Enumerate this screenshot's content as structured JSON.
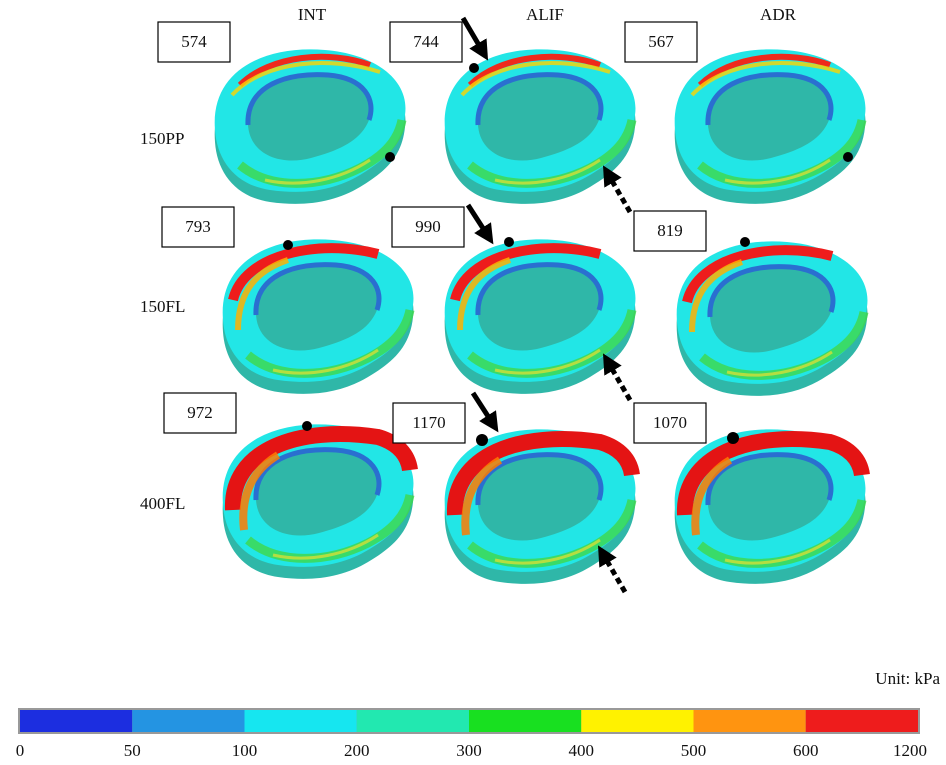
{
  "columns": [
    "INT",
    "ALIF",
    "ADR"
  ],
  "rows": [
    "150PP",
    "150FL",
    "400FL"
  ],
  "peaks": [
    [
      574,
      744,
      567
    ],
    [
      793,
      990,
      819
    ],
    [
      972,
      1170,
      1070
    ]
  ],
  "colorbar": {
    "unit": "Unit: kPa",
    "ticks": [
      0,
      50,
      100,
      200,
      300,
      400,
      500,
      600,
      1200
    ],
    "colors": [
      "#1c2ee0",
      "#2494e2",
      "#16e6f0",
      "#22e8b0",
      "#18e020",
      "#fff200",
      "#ff9410",
      "#ee1c1c"
    ]
  }
}
